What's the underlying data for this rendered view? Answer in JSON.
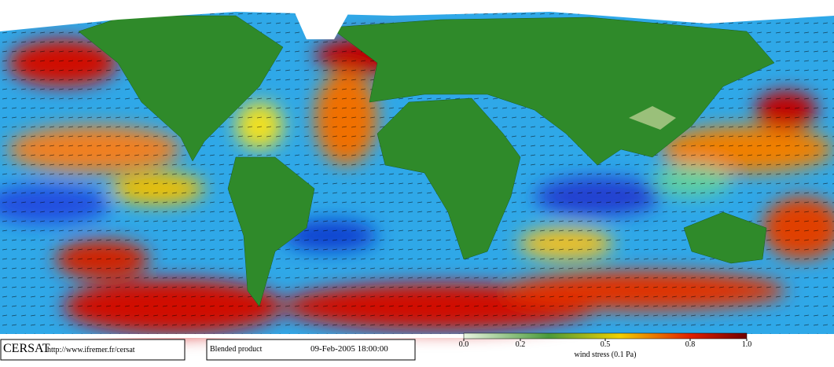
{
  "footer": {
    "logo": "CERSAT",
    "url": "http://www.ifremer.fr/cersat",
    "product": "Blended product",
    "date": "09-Feb-2005 18:00:00"
  },
  "colorbar": {
    "ticks": [
      {
        "value": 0,
        "label": "0.0"
      },
      {
        "value": 0.2,
        "label": "0.2"
      },
      {
        "value": 0.5,
        "label": "0.5"
      },
      {
        "value": 0.8,
        "label": "0.8"
      },
      {
        "value": 1,
        "label": "1.0"
      }
    ],
    "range": [
      0,
      1
    ],
    "label": "wind stress (0.1 Pa)"
  }
}
